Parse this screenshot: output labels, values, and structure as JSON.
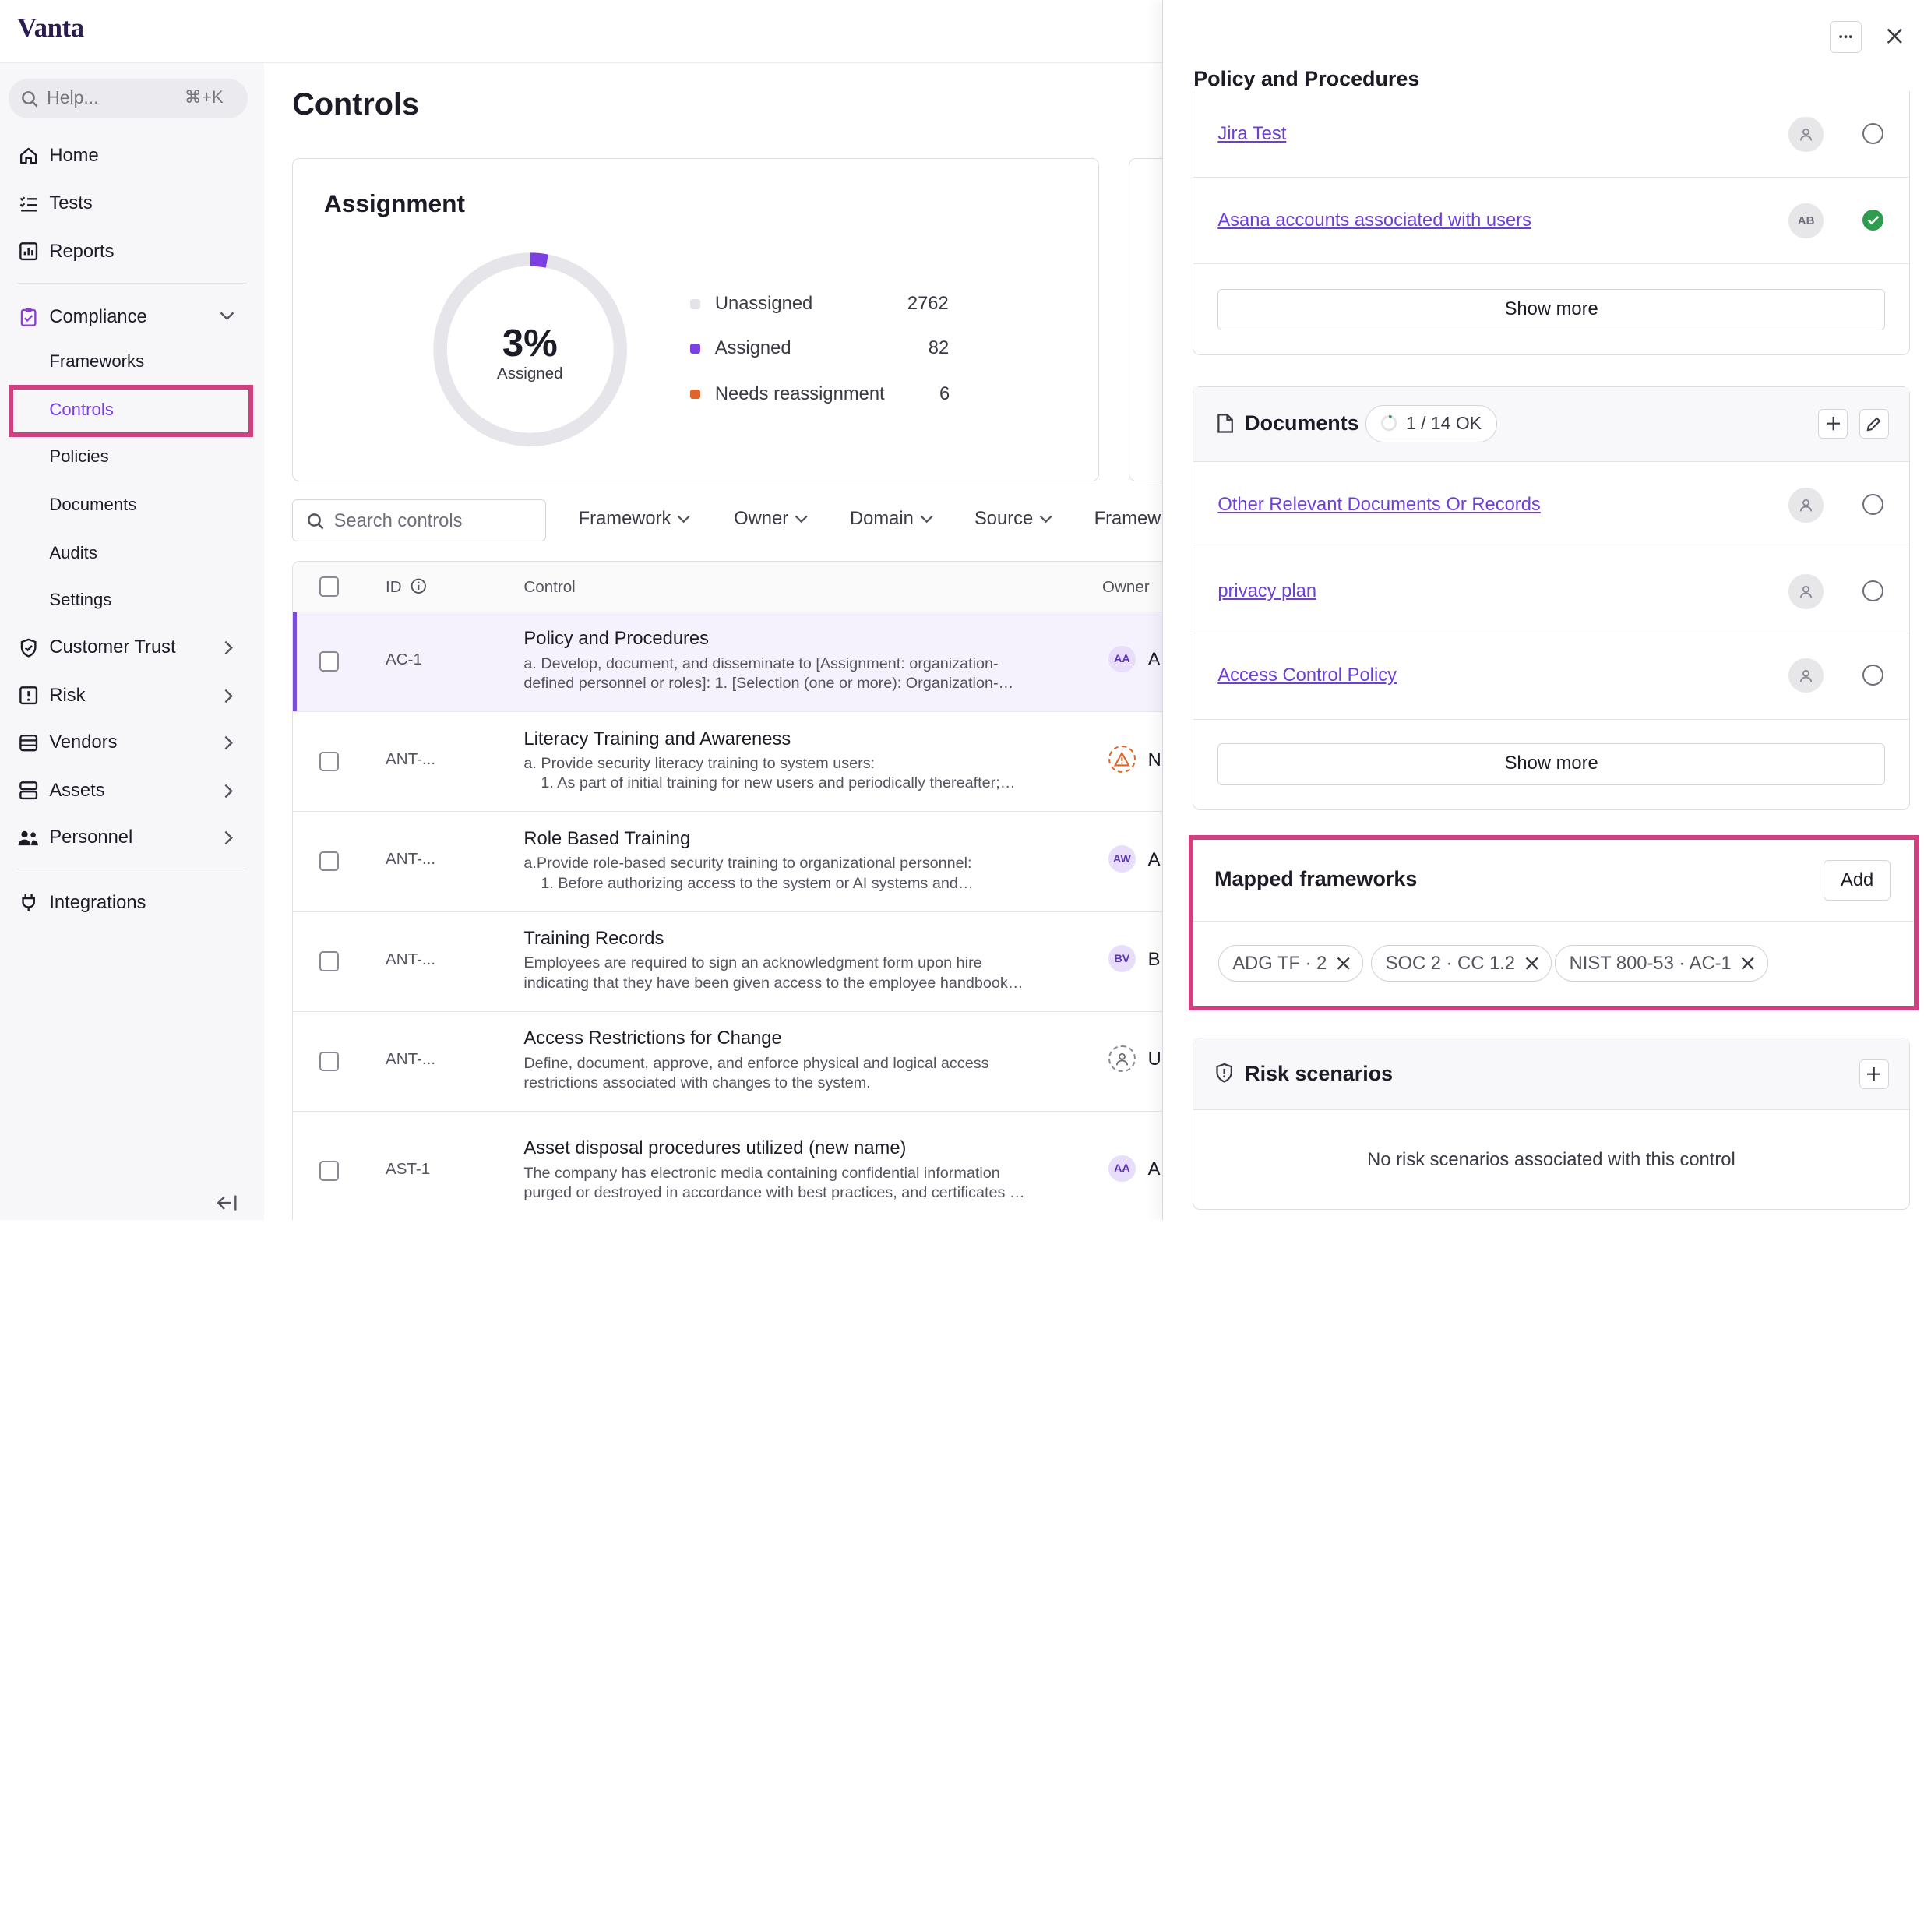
{
  "app": {
    "logo": "Vanta"
  },
  "search": {
    "placeholder": "Help...",
    "shortcut": "⌘+K"
  },
  "sidebar": {
    "items": [
      {
        "label": "Home"
      },
      {
        "label": "Tests"
      },
      {
        "label": "Reports"
      },
      {
        "label": "Compliance"
      },
      {
        "label": "Customer Trust"
      },
      {
        "label": "Risk"
      },
      {
        "label": "Vendors"
      },
      {
        "label": "Assets"
      },
      {
        "label": "Personnel"
      },
      {
        "label": "Integrations"
      }
    ],
    "compliance_sub": [
      {
        "label": "Frameworks"
      },
      {
        "label": "Controls"
      },
      {
        "label": "Policies"
      },
      {
        "label": "Documents"
      },
      {
        "label": "Audits"
      },
      {
        "label": "Settings"
      }
    ]
  },
  "main": {
    "title": "Controls",
    "assignment": {
      "title": "Assignment",
      "percent": "3%",
      "percent_label": "Assigned",
      "percent_value": 3,
      "legend": [
        {
          "label": "Unassigned",
          "value": "2762",
          "color": "#e4e4e8"
        },
        {
          "label": "Assigned",
          "value": "82",
          "color": "#7c3fe4"
        },
        {
          "label": "Needs reassignment",
          "value": "6",
          "color": "#e0652b"
        }
      ]
    },
    "search_placeholder": "Search controls",
    "filters": [
      "Framework",
      "Owner",
      "Domain",
      "Source",
      "Framew"
    ],
    "table": {
      "headers": {
        "id": "ID",
        "control": "Control",
        "owner": "Owner"
      },
      "rows": [
        {
          "id": "AC-1",
          "name": "Policy and Procedures",
          "desc": "a. Develop, document, and disseminate to [Assignment: organization-\ndefined personnel or roles]: 1. [Selection (one or more): Organization-…",
          "avatar": "AA",
          "owner": "A"
        },
        {
          "id": "ANT-...",
          "name": "Literacy Training and Awareness",
          "desc": "a. Provide security literacy training to system users:\n    1. As part of initial training for new users and periodically thereafter;…",
          "avatar": "warning",
          "owner": "N"
        },
        {
          "id": "ANT-...",
          "name": "Role Based Training",
          "desc": "a.Provide role-based security training to organizational personnel:\n    1. Before authorizing access to the system or AI systems and…",
          "avatar": "AW",
          "owner": "A"
        },
        {
          "id": "ANT-...",
          "name": "Training Records",
          "desc": "Employees are required to sign an acknowledgment form upon hire\nindicating that they have been given access to the employee handbook…",
          "avatar": "BV",
          "owner": "B"
        },
        {
          "id": "ANT-...",
          "name": "Access Restrictions for Change",
          "desc": "Define, document, approve, and enforce physical and logical access\nrestrictions associated with changes to the system.",
          "avatar": "user",
          "owner": "U"
        },
        {
          "id": "AST-1",
          "name": "Asset disposal procedures utilized (new name)",
          "desc": "The company has electronic media containing confidential information\npurged or destroyed in accordance with best practices, and certificates …",
          "avatar": "AA",
          "owner": "A"
        }
      ]
    }
  },
  "panel": {
    "title": "Policy and Procedures",
    "tests": [
      {
        "label": "Jira Test",
        "avatar": "",
        "status": "open"
      },
      {
        "label": "Asana accounts associated with users",
        "avatar": "AB",
        "status": "ok"
      }
    ],
    "show_more": "Show more",
    "documents": {
      "title": "Documents",
      "badge": "1 / 14 OK",
      "items": [
        {
          "label": "Other Relevant Documents Or Records"
        },
        {
          "label": "privacy plan"
        },
        {
          "label": "Access Control Policy"
        }
      ],
      "show_more": "Show more"
    },
    "mapped": {
      "title": "Mapped frameworks",
      "add": "Add",
      "chips": [
        "ADG TF · 2",
        "SOC 2 · CC 1.2",
        "NIST 800-53 · AC-1"
      ]
    },
    "risk": {
      "title": "Risk scenarios",
      "empty": "No risk scenarios associated with this control"
    }
  }
}
